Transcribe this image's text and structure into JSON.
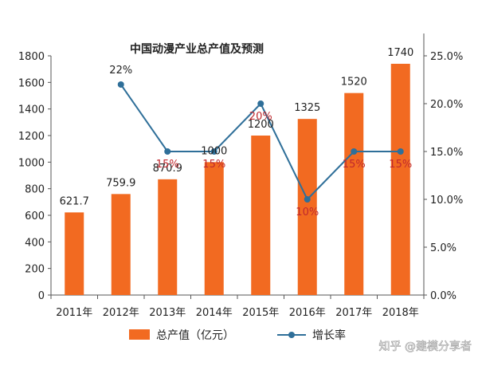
{
  "chart_data": {
    "type": "bar",
    "title": "中国动漫产业总产值及预测",
    "categories": [
      "2011年",
      "2012年",
      "2013年",
      "2014年",
      "2015年",
      "2016年",
      "2017年",
      "2018年"
    ],
    "series": [
      {
        "name": "总产值（亿元）",
        "type": "bar",
        "axis": "left",
        "values": [
          621.7,
          759.9,
          870.9,
          1000,
          1200,
          1325,
          1520,
          1740
        ],
        "labels": [
          "621.7",
          "759.9",
          "870.9",
          "1000",
          "1200",
          "1325",
          "1520",
          "1740"
        ]
      },
      {
        "name": "增长率",
        "type": "line",
        "axis": "right",
        "values": [
          null,
          22,
          15,
          15,
          20,
          10,
          15,
          15
        ],
        "labels": [
          "",
          "22%",
          "15%",
          "15%",
          "20%",
          "10%",
          "15%",
          "15%"
        ]
      }
    ],
    "y_left": {
      "lim": [
        0,
        1800
      ],
      "ticks": [
        0,
        200,
        400,
        600,
        800,
        1000,
        1200,
        1400,
        1600,
        1800
      ],
      "tick_labels": [
        "0",
        "200",
        "400",
        "600",
        "800",
        "1000",
        "1200",
        "1400",
        "1600",
        "1800"
      ]
    },
    "y_right": {
      "lim": [
        0,
        25
      ],
      "ticks": [
        0,
        5,
        10,
        15,
        20,
        25
      ],
      "tick_labels": [
        "0.0%",
        "5.0%",
        "10.0%",
        "15.0%",
        "20.0%",
        "25.0%"
      ]
    },
    "grid": false,
    "legend": "bottom",
    "colors": {
      "bar": "#f26a21",
      "line": "#2f6f99",
      "rate_label": "#c0282d",
      "text": "#222222",
      "axis": "#555555"
    }
  },
  "watermark": "知乎 @建模分享者"
}
